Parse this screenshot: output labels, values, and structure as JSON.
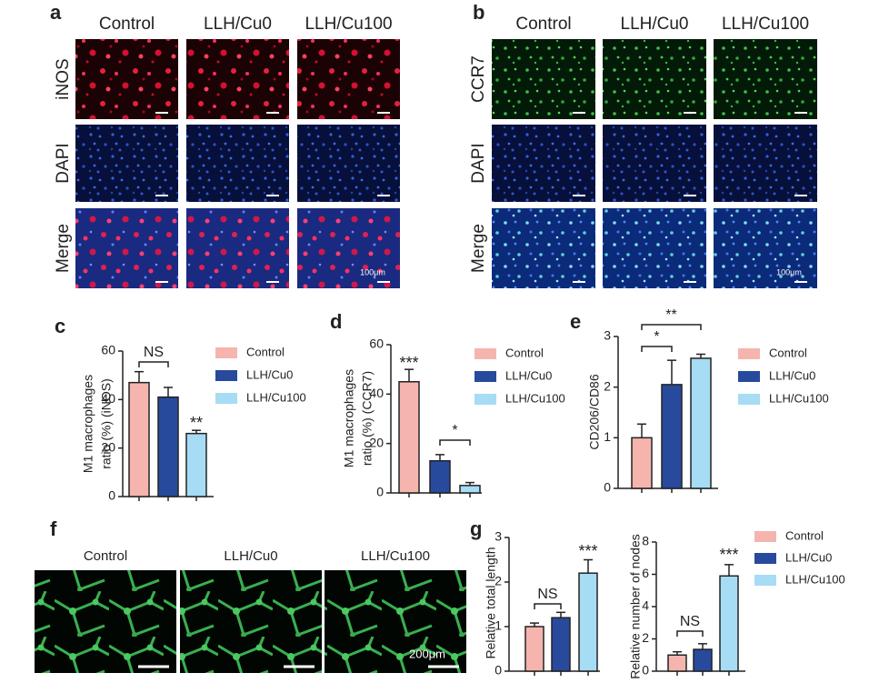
{
  "panels": {
    "a": {
      "letter": "a",
      "columns": [
        "Control",
        "LLH/Cu0",
        "LLH/Cu100"
      ],
      "rows": [
        "iNOS",
        "DAPI",
        "Merge"
      ],
      "scale": "100μm"
    },
    "b": {
      "letter": "b",
      "columns": [
        "Control",
        "LLH/Cu0",
        "LLH/Cu100"
      ],
      "rows": [
        "CCR7",
        "DAPI",
        "Merge"
      ],
      "scale": "100μm"
    },
    "f": {
      "letter": "f",
      "columns": [
        "Control",
        "LLH/Cu0",
        "LLH/Cu100"
      ],
      "scale": "200μm"
    }
  },
  "chart_data": [
    {
      "type": "bar",
      "letter": "c",
      "ylabel": [
        "M1 macrophages",
        "ratio (%) (iNOS)"
      ],
      "categories": [
        "Control",
        "LLH/Cu0",
        "LLH/Cu100"
      ],
      "colors": [
        "#f5b5ae",
        "#284a9c",
        "#a6dcf4"
      ],
      "values": [
        47,
        41,
        26
      ],
      "errors": [
        4.5,
        4,
        1.3
      ],
      "ylim": [
        0,
        60
      ],
      "yticks": [
        0,
        20,
        40,
        60
      ],
      "annotations": [
        "NS",
        "**"
      ],
      "legend": true
    },
    {
      "type": "bar",
      "letter": "d",
      "ylabel": [
        "M1 macrophages",
        "ratio (%) (CCR7)"
      ],
      "categories": [
        "Control",
        "LLH/Cu0",
        "LLH/Cu100"
      ],
      "colors": [
        "#f5b5ae",
        "#284a9c",
        "#a6dcf4"
      ],
      "values": [
        45,
        13,
        3
      ],
      "errors": [
        5,
        2.5,
        1.2
      ],
      "ylim": [
        0,
        60
      ],
      "yticks": [
        0,
        20,
        40,
        60
      ],
      "annotations": [
        "***",
        "*"
      ],
      "legend": true
    },
    {
      "type": "bar",
      "letter": "e",
      "ylabel": [
        "CD206/CD86"
      ],
      "categories": [
        "Control",
        "LLH/Cu0",
        "LLH/Cu100"
      ],
      "colors": [
        "#f5b5ae",
        "#284a9c",
        "#a6dcf4"
      ],
      "values": [
        1.0,
        2.05,
        2.57
      ],
      "errors": [
        0.27,
        0.48,
        0.08
      ],
      "ylim": [
        0,
        3
      ],
      "yticks": [
        0,
        1,
        2,
        3
      ],
      "annotations": [
        "*",
        "**"
      ],
      "legend": true
    },
    {
      "type": "bar",
      "letter": "g",
      "ylabel": [
        "Relative total length"
      ],
      "colors": [
        "#f5b5ae",
        "#284a9c",
        "#a6dcf4"
      ],
      "values": [
        1.0,
        1.2,
        2.2
      ],
      "errors": [
        0.08,
        0.12,
        0.3
      ],
      "ylim": [
        0,
        3
      ],
      "yticks": [
        0,
        1,
        2,
        3
      ],
      "annotations": [
        "NS",
        "***"
      ],
      "legend": false
    },
    {
      "type": "bar",
      "ylabel": [
        "Relative number of nodes"
      ],
      "categories": [
        "Control",
        "LLH/Cu0",
        "LLH/Cu100"
      ],
      "colors": [
        "#f5b5ae",
        "#284a9c",
        "#a6dcf4"
      ],
      "values": [
        1.0,
        1.35,
        5.9
      ],
      "errors": [
        0.2,
        0.35,
        0.7
      ],
      "ylim": [
        0,
        8
      ],
      "yticks": [
        0,
        2,
        4,
        6,
        8
      ],
      "annotations": [
        "NS",
        "***"
      ],
      "legend": true
    }
  ]
}
